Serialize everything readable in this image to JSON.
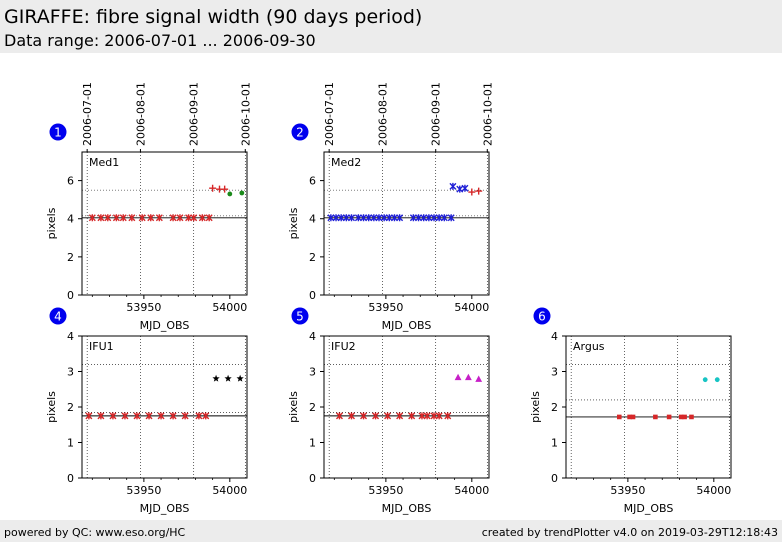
{
  "header": {
    "title": "GIRAFFE: fibre signal width (90 days period)",
    "subtitle": "Data range: 2006-07-01 ... 2006-09-30"
  },
  "footer": {
    "left": "powered by QC: www.eso.org/HC",
    "right": "created by trendPlotter v4.0 on 2019-03-29T12:18:43"
  },
  "colors": {
    "red": "#d62728",
    "blue": "#1f1fd6",
    "green": "#1a8a1a",
    "black": "#000000",
    "magenta": "#c71fc7",
    "cyan": "#17c4c4",
    "badge": "#0000ee"
  },
  "chart_data": [
    {
      "type": "scatter",
      "panel": "1",
      "label": "Med1",
      "xlabel": "MJD_OBS",
      "ylabel": "pixels",
      "xlim": [
        53914,
        54010
      ],
      "ylim": [
        0,
        7.5
      ],
      "yticks": [
        0,
        2,
        4,
        6
      ],
      "xticks": [
        53950,
        54000
      ],
      "top_axis_ticks": [
        {
          "mjd": 53917,
          "label": "2006-07-01"
        },
        {
          "mjd": 53948,
          "label": "2006-08-01"
        },
        {
          "mjd": 53979,
          "label": "2006-09-01"
        },
        {
          "mjd": 54009,
          "label": "2006-10-01"
        }
      ],
      "hlines": [
        {
          "y": 5.5,
          "style": "dotted"
        },
        {
          "y": 4.15,
          "style": "dotted"
        },
        {
          "y": 4.05,
          "style": "solid"
        }
      ],
      "series": [
        {
          "color": "red",
          "marker": "x",
          "points": [
            [
              53920,
              4.05
            ],
            [
              53925,
              4.05
            ],
            [
              53929,
              4.05
            ],
            [
              53934,
              4.05
            ],
            [
              53938,
              4.05
            ],
            [
              53943,
              4.05
            ],
            [
              53949,
              4.05
            ],
            [
              53954,
              4.05
            ],
            [
              53959,
              4.05
            ],
            [
              53967,
              4.05
            ],
            [
              53971,
              4.05
            ],
            [
              53976,
              4.05
            ],
            [
              53979,
              4.05
            ],
            [
              53984,
              4.05
            ],
            [
              53988,
              4.05
            ]
          ]
        },
        {
          "color": "red",
          "marker": "plus",
          "points": [
            [
              53990,
              5.6
            ],
            [
              53994,
              5.55
            ],
            [
              53997,
              5.55
            ]
          ]
        },
        {
          "color": "green",
          "marker": "circle",
          "points": [
            [
              54000,
              5.3
            ],
            [
              54007,
              5.35
            ]
          ]
        }
      ]
    },
    {
      "type": "scatter",
      "panel": "2",
      "label": "Med2",
      "xlabel": "MJD_OBS",
      "ylabel": "pixels",
      "xlim": [
        53914,
        54010
      ],
      "ylim": [
        0,
        7.5
      ],
      "yticks": [
        0,
        2,
        4,
        6
      ],
      "xticks": [
        53950,
        54000
      ],
      "top_axis_ticks": [
        {
          "mjd": 53917,
          "label": "2006-07-01"
        },
        {
          "mjd": 53948,
          "label": "2006-08-01"
        },
        {
          "mjd": 53979,
          "label": "2006-09-01"
        },
        {
          "mjd": 54009,
          "label": "2006-10-01"
        }
      ],
      "hlines": [
        {
          "y": 5.5,
          "style": "dotted"
        },
        {
          "y": 4.15,
          "style": "dotted"
        },
        {
          "y": 4.05,
          "style": "solid"
        }
      ],
      "series": [
        {
          "color": "blue",
          "marker": "x",
          "points": [
            [
              53918,
              4.05
            ],
            [
              53921,
              4.05
            ],
            [
              53924,
              4.05
            ],
            [
              53927,
              4.05
            ],
            [
              53930,
              4.05
            ],
            [
              53934,
              4.05
            ],
            [
              53937,
              4.05
            ],
            [
              53940,
              4.05
            ],
            [
              53943,
              4.05
            ],
            [
              53946,
              4.05
            ],
            [
              53949,
              4.05
            ],
            [
              53952,
              4.05
            ],
            [
              53955,
              4.05
            ],
            [
              53958,
              4.05
            ],
            [
              53966,
              4.05
            ],
            [
              53969,
              4.05
            ],
            [
              53972,
              4.05
            ],
            [
              53975,
              4.05
            ],
            [
              53978,
              4.05
            ],
            [
              53981,
              4.05
            ],
            [
              53984,
              4.05
            ],
            [
              53988,
              4.05
            ],
            [
              53989,
              5.7
            ],
            [
              53993,
              5.55
            ],
            [
              53996,
              5.6
            ]
          ]
        },
        {
          "color": "red",
          "marker": "plus",
          "points": [
            [
              54000,
              5.4
            ],
            [
              54004,
              5.45
            ]
          ]
        }
      ]
    },
    {
      "type": "scatter",
      "panel": "4",
      "label": "IFU1",
      "xlabel": "MJD_OBS",
      "ylabel": "pixels",
      "xlim": [
        53914,
        54010
      ],
      "ylim": [
        0,
        4
      ],
      "yticks": [
        0,
        1,
        2,
        3,
        4
      ],
      "xticks": [
        53950,
        54000
      ],
      "hlines": [
        {
          "y": 3.2,
          "style": "dotted"
        },
        {
          "y": 1.85,
          "style": "dotted"
        },
        {
          "y": 1.75,
          "style": "solid"
        }
      ],
      "series": [
        {
          "color": "red",
          "marker": "x",
          "points": [
            [
              53918,
              1.75
            ],
            [
              53925,
              1.75
            ],
            [
              53932,
              1.75
            ],
            [
              53939,
              1.75
            ],
            [
              53946,
              1.75
            ],
            [
              53953,
              1.75
            ],
            [
              53960,
              1.75
            ],
            [
              53967,
              1.75
            ],
            [
              53974,
              1.75
            ],
            [
              53982,
              1.75
            ],
            [
              53986,
              1.75
            ]
          ]
        },
        {
          "color": "black",
          "marker": "star",
          "points": [
            [
              53992,
              2.8
            ],
            [
              53999,
              2.8
            ],
            [
              54006,
              2.8
            ]
          ]
        }
      ]
    },
    {
      "type": "scatter",
      "panel": "5",
      "label": "IFU2",
      "xlabel": "MJD_OBS",
      "ylabel": "pixels",
      "xlim": [
        53914,
        54010
      ],
      "ylim": [
        0,
        4
      ],
      "yticks": [
        0,
        1,
        2,
        3,
        4
      ],
      "xticks": [
        53950,
        54000
      ],
      "hlines": [
        {
          "y": 3.2,
          "style": "dotted"
        },
        {
          "y": 1.85,
          "style": "dotted"
        },
        {
          "y": 1.75,
          "style": "solid"
        }
      ],
      "series": [
        {
          "color": "red",
          "marker": "x",
          "points": [
            [
              53923,
              1.75
            ],
            [
              53930,
              1.75
            ],
            [
              53937,
              1.75
            ],
            [
              53944,
              1.75
            ],
            [
              53951,
              1.75
            ],
            [
              53958,
              1.75
            ],
            [
              53965,
              1.75
            ],
            [
              53971,
              1.75
            ],
            [
              53974,
              1.75
            ],
            [
              53978,
              1.75
            ],
            [
              53981,
              1.75
            ],
            [
              53986,
              1.75
            ]
          ]
        },
        {
          "color": "magenta",
          "marker": "triangle",
          "points": [
            [
              53992,
              2.83
            ],
            [
              53998,
              2.83
            ],
            [
              54004,
              2.78
            ]
          ]
        }
      ]
    },
    {
      "type": "scatter",
      "panel": "6",
      "label": "Argus",
      "xlabel": "MJD_OBS",
      "ylabel": "pixels",
      "xlim": [
        53914,
        54010
      ],
      "ylim": [
        0,
        4
      ],
      "yticks": [
        0,
        1,
        2,
        3,
        4
      ],
      "xticks": [
        53950,
        54000
      ],
      "hlines": [
        {
          "y": 3.2,
          "style": "dotted"
        },
        {
          "y": 2.2,
          "style": "dotted"
        },
        {
          "y": 1.72,
          "style": "solid"
        }
      ],
      "series": [
        {
          "color": "red",
          "marker": "square",
          "points": [
            [
              53945,
              1.72
            ],
            [
              53951,
              1.72
            ],
            [
              53953,
              1.72
            ],
            [
              53966,
              1.72
            ],
            [
              53974,
              1.72
            ],
            [
              53981,
              1.72
            ],
            [
              53983,
              1.72
            ],
            [
              53987,
              1.72
            ]
          ]
        },
        {
          "color": "cyan",
          "marker": "circle",
          "points": [
            [
              53995,
              2.77
            ],
            [
              54002,
              2.77
            ]
          ]
        }
      ]
    }
  ]
}
